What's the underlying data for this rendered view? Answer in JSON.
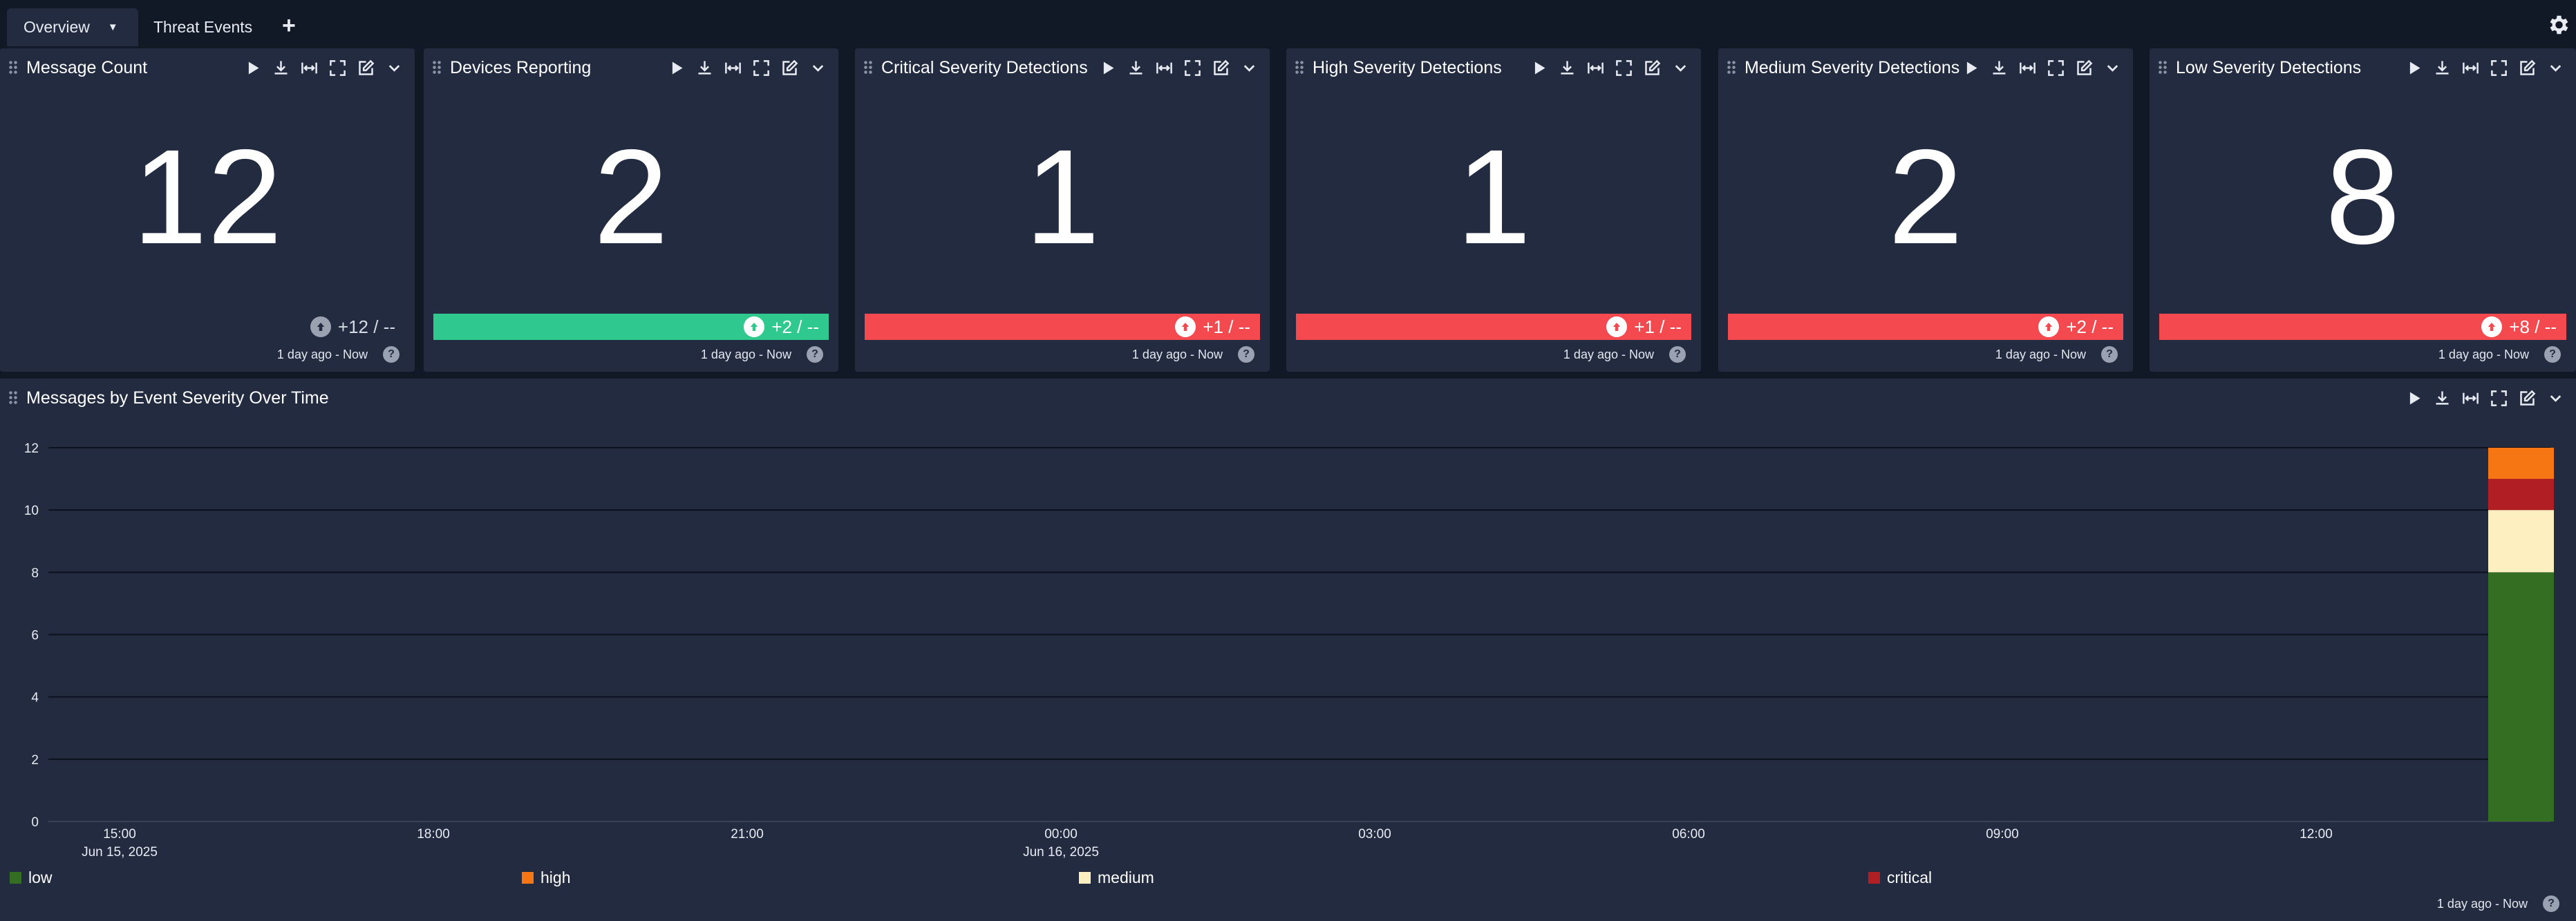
{
  "tabs": {
    "overview": "Overview",
    "threat_events": "Threat Events",
    "add": "+"
  },
  "colors": {
    "green": "#2fc88f",
    "red": "#f44a4f",
    "low": "#336e23",
    "high": "#f57613",
    "medium": "#feefc0",
    "critical": "#b11f24"
  },
  "panels": [
    {
      "title": "Message Count",
      "value": "12",
      "trend": "+12 / --",
      "trend_color": "neutral",
      "footer": "1 day ago - Now"
    },
    {
      "title": "Devices Reporting",
      "value": "2",
      "trend": "+2 / --",
      "trend_color": "green",
      "footer": "1 day ago - Now"
    },
    {
      "title": "Critical Severity Detections",
      "value": "1",
      "trend": "+1 / --",
      "trend_color": "red",
      "footer": "1 day ago - Now"
    },
    {
      "title": "High Severity Detections",
      "value": "1",
      "trend": "+1 / --",
      "trend_color": "red",
      "footer": "1 day ago - Now"
    },
    {
      "title": "Medium Severity Detections",
      "value": "2",
      "trend": "+2 / --",
      "trend_color": "red",
      "footer": "1 day ago - Now"
    },
    {
      "title": "Low Severity Detections",
      "value": "8",
      "trend": "+8 / --",
      "trend_color": "red",
      "footer": "1 day ago - Now"
    }
  ],
  "help_glyph": "?",
  "chart_panel": {
    "title": "Messages by Event Severity Over Time",
    "footer": "1 day ago - Now"
  },
  "chart_data": {
    "type": "bar",
    "stacked": true,
    "title": "Messages by Event Severity Over Time",
    "ylim": [
      0,
      12
    ],
    "yticks": [
      0,
      2,
      4,
      6,
      8,
      10,
      12
    ],
    "xticks": [
      {
        "label": "15:00",
        "sub": "Jun 15, 2025"
      },
      {
        "label": "18:00",
        "sub": ""
      },
      {
        "label": "21:00",
        "sub": ""
      },
      {
        "label": "00:00",
        "sub": "Jun 16, 2025"
      },
      {
        "label": "03:00",
        "sub": ""
      },
      {
        "label": "06:00",
        "sub": ""
      },
      {
        "label": "09:00",
        "sub": ""
      },
      {
        "label": "12:00",
        "sub": ""
      }
    ],
    "grid": true,
    "legend_position": "bottom",
    "x_time": "Jun 16, 2025 ~14:00",
    "series": [
      {
        "name": "low",
        "value": 8,
        "color": "#336e23"
      },
      {
        "name": "medium",
        "value": 2,
        "color": "#feefc0"
      },
      {
        "name": "critical",
        "value": 1,
        "color": "#b11f24"
      },
      {
        "name": "high",
        "value": 1,
        "color": "#f57613"
      }
    ],
    "legend": [
      {
        "name": "low",
        "color": "#336e23"
      },
      {
        "name": "high",
        "color": "#f57613"
      },
      {
        "name": "medium",
        "color": "#feefc0"
      },
      {
        "name": "critical",
        "color": "#b11f24"
      }
    ]
  }
}
